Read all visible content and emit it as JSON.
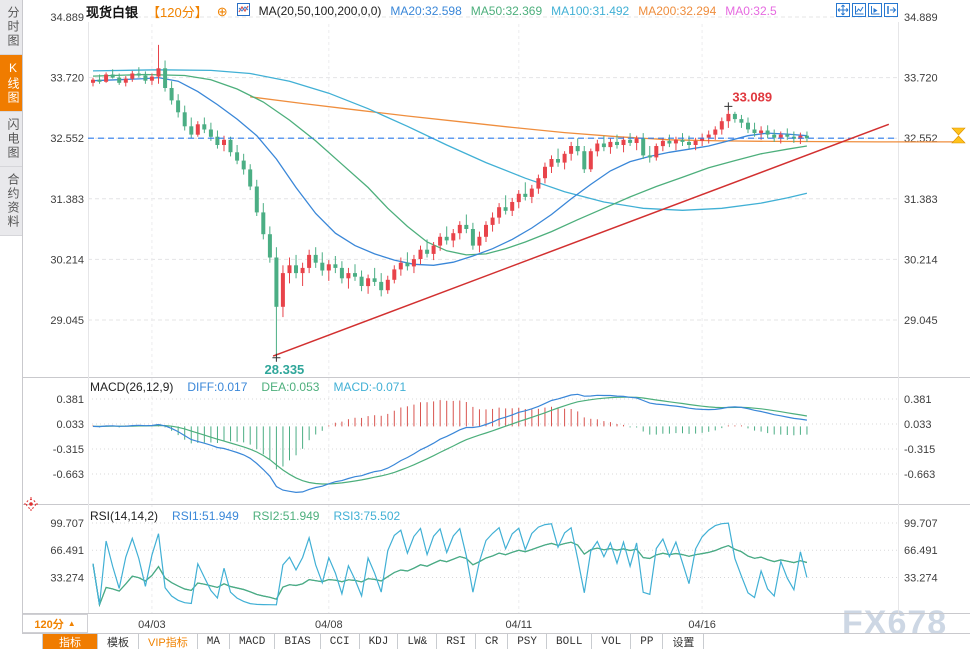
{
  "sidebar": {
    "items": [
      {
        "label": "分时图",
        "selected": false
      },
      {
        "label": "K线图",
        "selected": true
      },
      {
        "label": "闪电图",
        "selected": false
      },
      {
        "label": "合约资料",
        "selected": false
      }
    ]
  },
  "header": {
    "symbol": "现货白银",
    "period": "【120分】",
    "plus_icon": "⊕",
    "ma_settings": "MA(20,50,100,200,0,0)",
    "ma20": "MA20:32.598",
    "ma50": "MA50:32.369",
    "ma100": "MA100:31.492",
    "ma200": "MA200:32.294",
    "ma0": "MA0:32.5"
  },
  "macd_header": {
    "name": "MACD(26,12,9)",
    "diff": "DIFF:0.017",
    "dea": "DEA:0.053",
    "macd": "MACD:-0.071"
  },
  "rsi_header": {
    "name": "RSI(14,14,2)",
    "rsi1": "RSI1:51.949",
    "rsi2": "RSI2:51.949",
    "rsi3": "RSI3:75.502"
  },
  "bottom": {
    "period": "120分",
    "period_arrow": "▲",
    "tabs": [
      {
        "label": "指标"
      },
      {
        "label": "模板"
      },
      {
        "label": "VIP指标"
      },
      {
        "label": "MA"
      },
      {
        "label": "MACD"
      },
      {
        "label": "BIAS"
      },
      {
        "label": "CCI"
      },
      {
        "label": "KDJ"
      },
      {
        "label": "LW&"
      },
      {
        "label": "RSI"
      },
      {
        "label": "CR"
      },
      {
        "label": "PSY"
      },
      {
        "label": "BOLL"
      },
      {
        "label": "VOL"
      },
      {
        "label": "PP"
      },
      {
        "label": "设置"
      }
    ]
  },
  "watermark": "FX678",
  "chart_data": {
    "type": "candlestick+indicators",
    "colors": {
      "up": "#e8434a",
      "down": "#4bae84",
      "ma20": "#3a87d8",
      "ma50": "#4daf7c",
      "ma100": "#41b0d5",
      "ma200": "#ef8e3e",
      "price_line": "#2f7ded",
      "trend": "#d23030",
      "hist_up": "#d9544f",
      "hist_down": "#4bae84",
      "rsi1": "#3a87d8",
      "rsi2": "#4daf7c",
      "rsi3": "#41b0d5",
      "annotation_high": "#e0393f",
      "annotation_low": "#2fa69a",
      "marker": "#ffc21c",
      "accent": "#f08200"
    },
    "main": {
      "y_tick_labels": [
        "34.889",
        "33.720",
        "32.552",
        "31.383",
        "30.214",
        "29.045"
      ],
      "y_tick_values": [
        34.889,
        33.72,
        32.552,
        31.383,
        30.214,
        29.045
      ],
      "current_price": 32.552,
      "x_ticks": [
        {
          "label": "04/03",
          "bar": 9
        },
        {
          "label": "04/08",
          "bar": 36
        },
        {
          "label": "04/11",
          "bar": 65
        },
        {
          "label": "04/16",
          "bar": 93
        }
      ],
      "annotations": {
        "high": {
          "label": "33.089",
          "bar": 97,
          "price": 33.089
        },
        "low": {
          "label": "28.335",
          "bar": 28,
          "price": 28.335
        }
      },
      "trendline": [
        [
          27.5,
          28.35
        ],
        [
          121.5,
          32.82
        ]
      ],
      "ma_lines": {
        "ma20": [
          [
            0,
            33.66
          ],
          [
            4,
            33.68
          ],
          [
            8,
            33.7
          ],
          [
            10,
            33.72
          ],
          [
            13,
            33.65
          ],
          [
            16,
            33.45
          ],
          [
            19,
            33.2
          ],
          [
            22,
            32.92
          ],
          [
            25,
            32.6
          ],
          [
            28,
            32.15
          ],
          [
            31,
            31.6
          ],
          [
            34,
            31.1
          ],
          [
            37,
            30.72
          ],
          [
            40,
            30.48
          ],
          [
            43,
            30.32
          ],
          [
            46,
            30.2
          ],
          [
            49,
            30.12
          ],
          [
            52,
            30.1
          ],
          [
            55,
            30.16
          ],
          [
            58,
            30.28
          ],
          [
            61,
            30.42
          ],
          [
            64,
            30.6
          ],
          [
            67,
            30.82
          ],
          [
            70,
            31.08
          ],
          [
            73,
            31.38
          ],
          [
            76,
            31.66
          ],
          [
            79,
            31.92
          ],
          [
            82,
            32.1
          ],
          [
            85,
            32.2
          ],
          [
            88,
            32.28
          ],
          [
            91,
            32.34
          ],
          [
            94,
            32.4
          ],
          [
            97,
            32.5
          ],
          [
            100,
            32.6
          ],
          [
            103,
            32.65
          ],
          [
            106,
            32.63
          ],
          [
            109,
            32.6
          ]
        ],
        "ma50": [
          [
            0,
            33.75
          ],
          [
            8,
            33.78
          ],
          [
            14,
            33.76
          ],
          [
            18,
            33.68
          ],
          [
            22,
            33.5
          ],
          [
            26,
            33.25
          ],
          [
            30,
            32.9
          ],
          [
            34,
            32.5
          ],
          [
            38,
            32.05
          ],
          [
            42,
            31.6
          ],
          [
            45,
            31.2
          ],
          [
            48,
            30.85
          ],
          [
            51,
            30.55
          ],
          [
            54,
            30.38
          ],
          [
            57,
            30.3
          ],
          [
            60,
            30.32
          ],
          [
            63,
            30.42
          ],
          [
            66,
            30.55
          ],
          [
            70,
            30.75
          ],
          [
            74,
            30.98
          ],
          [
            78,
            31.2
          ],
          [
            82,
            31.42
          ],
          [
            86,
            31.62
          ],
          [
            90,
            31.8
          ],
          [
            94,
            31.98
          ],
          [
            98,
            32.12
          ],
          [
            102,
            32.25
          ],
          [
            106,
            32.34
          ],
          [
            109,
            32.4
          ]
        ],
        "ma100": [
          [
            0,
            33.85
          ],
          [
            10,
            33.87
          ],
          [
            18,
            33.86
          ],
          [
            24,
            33.8
          ],
          [
            30,
            33.65
          ],
          [
            36,
            33.42
          ],
          [
            42,
            33.12
          ],
          [
            48,
            32.78
          ],
          [
            54,
            32.42
          ],
          [
            60,
            32.08
          ],
          [
            66,
            31.78
          ],
          [
            72,
            31.52
          ],
          [
            78,
            31.32
          ],
          [
            84,
            31.2
          ],
          [
            90,
            31.16
          ],
          [
            96,
            31.2
          ],
          [
            102,
            31.3
          ],
          [
            106,
            31.4
          ],
          [
            109,
            31.49
          ]
        ],
        "ma200": [
          [
            24,
            33.35
          ],
          [
            32,
            33.22
          ],
          [
            40,
            33.1
          ],
          [
            48,
            32.98
          ],
          [
            56,
            32.87
          ],
          [
            64,
            32.76
          ],
          [
            72,
            32.66
          ],
          [
            80,
            32.58
          ],
          [
            88,
            32.52
          ],
          [
            96,
            32.5
          ],
          [
            104,
            32.49
          ],
          [
            120,
            32.48
          ],
          [
            133,
            32.48
          ]
        ]
      },
      "candles": [
        [
          33.62,
          33.72,
          33.55,
          33.68
        ],
        [
          33.68,
          33.78,
          33.6,
          33.64
        ],
        [
          33.64,
          33.82,
          33.62,
          33.78
        ],
        [
          33.78,
          33.88,
          33.7,
          33.72
        ],
        [
          33.72,
          33.8,
          33.58,
          33.62
        ],
        [
          33.62,
          33.75,
          33.55,
          33.7
        ],
        [
          33.7,
          33.85,
          33.64,
          33.8
        ],
        [
          33.8,
          33.92,
          33.72,
          33.76
        ],
        [
          33.76,
          33.84,
          33.6,
          33.66
        ],
        [
          33.66,
          33.8,
          33.58,
          33.74
        ],
        [
          33.74,
          34.35,
          33.6,
          33.9
        ],
        [
          33.9,
          34.05,
          33.45,
          33.52
        ],
        [
          33.52,
          33.65,
          33.2,
          33.28
        ],
        [
          33.28,
          33.4,
          32.95,
          33.05
        ],
        [
          33.05,
          33.18,
          32.7,
          32.78
        ],
        [
          32.78,
          32.95,
          32.55,
          32.62
        ],
        [
          32.62,
          32.88,
          32.58,
          32.82
        ],
        [
          32.82,
          32.95,
          32.65,
          32.72
        ],
        [
          32.72,
          32.85,
          32.5,
          32.58
        ],
        [
          32.58,
          32.7,
          32.35,
          32.42
        ],
        [
          32.42,
          32.6,
          32.3,
          32.52
        ],
        [
          32.52,
          32.58,
          32.2,
          32.28
        ],
        [
          32.28,
          32.42,
          32.05,
          32.12
        ],
        [
          32.12,
          32.25,
          31.85,
          31.95
        ],
        [
          31.95,
          32.05,
          31.55,
          31.62
        ],
        [
          31.62,
          31.75,
          31.05,
          31.12
        ],
        [
          31.12,
          31.3,
          30.6,
          30.7
        ],
        [
          30.7,
          30.85,
          30.15,
          30.25
        ],
        [
          30.25,
          30.45,
          28.335,
          29.3
        ],
        [
          29.3,
          30.1,
          29.1,
          29.95
        ],
        [
          29.95,
          30.25,
          29.75,
          30.1
        ],
        [
          30.1,
          30.3,
          29.85,
          29.95
        ],
        [
          29.95,
          30.15,
          29.7,
          30.05
        ],
        [
          30.05,
          30.4,
          29.95,
          30.3
        ],
        [
          30.3,
          30.45,
          30.05,
          30.15
        ],
        [
          30.15,
          30.35,
          29.9,
          30.0
        ],
        [
          30.0,
          30.2,
          29.8,
          30.12
        ],
        [
          30.12,
          30.28,
          29.95,
          30.05
        ],
        [
          30.05,
          30.18,
          29.75,
          29.85
        ],
        [
          29.85,
          30.05,
          29.65,
          29.95
        ],
        [
          29.95,
          30.12,
          29.8,
          29.88
        ],
        [
          29.88,
          30.0,
          29.6,
          29.7
        ],
        [
          29.7,
          29.92,
          29.55,
          29.85
        ],
        [
          29.85,
          30.05,
          29.7,
          29.78
        ],
        [
          29.78,
          29.95,
          29.5,
          29.62
        ],
        [
          29.62,
          29.9,
          29.55,
          29.82
        ],
        [
          29.82,
          30.1,
          29.75,
          30.02
        ],
        [
          30.02,
          30.25,
          29.9,
          30.15
        ],
        [
          30.15,
          30.35,
          30.0,
          30.08
        ],
        [
          30.08,
          30.3,
          29.95,
          30.22
        ],
        [
          30.22,
          30.48,
          30.12,
          30.4
        ],
        [
          30.4,
          30.6,
          30.25,
          30.32
        ],
        [
          30.32,
          30.55,
          30.2,
          30.48
        ],
        [
          30.48,
          30.72,
          30.38,
          30.65
        ],
        [
          30.65,
          30.85,
          30.5,
          30.58
        ],
        [
          30.58,
          30.8,
          30.45,
          30.72
        ],
        [
          30.72,
          30.95,
          30.6,
          30.88
        ],
        [
          30.88,
          31.08,
          30.72,
          30.8
        ],
        [
          30.8,
          30.92,
          30.4,
          30.48
        ],
        [
          30.48,
          30.75,
          30.35,
          30.65
        ],
        [
          30.65,
          30.95,
          30.55,
          30.88
        ],
        [
          30.88,
          31.12,
          30.75,
          31.02
        ],
        [
          31.02,
          31.3,
          30.9,
          31.22
        ],
        [
          31.22,
          31.45,
          31.08,
          31.15
        ],
        [
          31.15,
          31.4,
          31.05,
          31.32
        ],
        [
          31.32,
          31.55,
          31.2,
          31.48
        ],
        [
          31.48,
          31.7,
          31.35,
          31.42
        ],
        [
          31.42,
          31.65,
          31.3,
          31.58
        ],
        [
          31.58,
          31.85,
          31.48,
          31.78
        ],
        [
          31.78,
          32.08,
          31.68,
          32.0
        ],
        [
          32.0,
          32.22,
          31.88,
          32.15
        ],
        [
          32.15,
          32.35,
          32.0,
          32.08
        ],
        [
          32.08,
          32.3,
          31.95,
          32.25
        ],
        [
          32.25,
          32.48,
          32.12,
          32.4
        ],
        [
          32.4,
          32.55,
          32.22,
          32.3
        ],
        [
          32.3,
          32.4,
          31.88,
          31.95
        ],
        [
          31.95,
          32.35,
          31.9,
          32.3
        ],
        [
          32.3,
          32.52,
          32.2,
          32.45
        ],
        [
          32.45,
          32.6,
          32.3,
          32.38
        ],
        [
          32.38,
          32.55,
          32.25,
          32.48
        ],
        [
          32.48,
          32.62,
          32.35,
          32.42
        ],
        [
          32.42,
          32.58,
          32.28,
          32.52
        ],
        [
          32.52,
          32.65,
          32.4,
          32.46
        ],
        [
          32.46,
          32.6,
          32.32,
          32.55
        ],
        [
          32.55,
          32.65,
          32.15,
          32.22
        ],
        [
          32.22,
          32.4,
          32.08,
          32.18
        ],
        [
          32.18,
          32.45,
          32.12,
          32.4
        ],
        [
          32.4,
          32.56,
          32.3,
          32.5
        ],
        [
          32.5,
          32.62,
          32.38,
          32.45
        ],
        [
          32.45,
          32.58,
          32.32,
          32.52
        ],
        [
          32.52,
          32.65,
          32.4,
          32.48
        ],
        [
          32.48,
          32.6,
          32.35,
          32.42
        ],
        [
          32.42,
          32.56,
          32.32,
          32.5
        ],
        [
          32.5,
          32.64,
          32.4,
          32.56
        ],
        [
          32.56,
          32.7,
          32.45,
          32.62
        ],
        [
          32.62,
          32.78,
          32.52,
          32.72
        ],
        [
          32.72,
          32.95,
          32.62,
          32.88
        ],
        [
          32.88,
          33.089,
          32.75,
          33.02
        ],
        [
          33.02,
          33.06,
          32.85,
          32.92
        ],
        [
          32.92,
          33.0,
          32.75,
          32.85
        ],
        [
          32.85,
          32.95,
          32.65,
          32.72
        ],
        [
          32.72,
          32.85,
          32.58,
          32.65
        ],
        [
          32.65,
          32.78,
          32.52,
          32.7
        ],
        [
          32.7,
          32.8,
          32.55,
          32.62
        ],
        [
          32.62,
          32.72,
          32.48,
          32.56
        ],
        [
          32.56,
          32.68,
          32.45,
          32.62
        ],
        [
          32.62,
          32.74,
          32.52,
          32.58
        ],
        [
          32.58,
          32.68,
          32.46,
          32.54
        ],
        [
          32.54,
          32.66,
          32.44,
          32.6
        ],
        [
          32.6,
          32.68,
          32.48,
          32.55
        ]
      ]
    },
    "macd": {
      "params": "26,12,9",
      "y_tick_labels": [
        "0.381",
        "0.033",
        "-0.315",
        "-0.663"
      ],
      "y_tick_values": [
        0.381,
        0.033,
        -0.315,
        -0.663
      ],
      "diff": 0.017,
      "dea": 0.053,
      "macd": -0.071
    },
    "rsi": {
      "params": "14,14,2",
      "periods": [
        14,
        14,
        2
      ],
      "y_tick_labels": [
        "99.707",
        "66.491",
        "33.274"
      ],
      "y_tick_values": [
        99.707,
        66.491,
        33.274
      ],
      "rsi1": 51.949,
      "rsi2": 51.949,
      "rsi3": 75.502
    }
  }
}
